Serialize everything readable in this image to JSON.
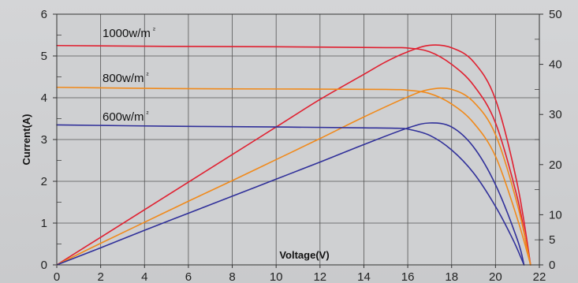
{
  "chart_data": {
    "type": "line",
    "xlabel": "Voltage(V)",
    "ylabel": "Current(A)",
    "xlim": [
      0,
      22
    ],
    "ylim": [
      0,
      6
    ],
    "y2lim": [
      0,
      50
    ],
    "xticks": [
      0,
      2,
      4,
      6,
      8,
      10,
      12,
      14,
      16,
      18,
      20,
      22
    ],
    "yticks": [
      0,
      1,
      2,
      3,
      4,
      5,
      6
    ],
    "y2ticks": [
      0,
      5,
      10,
      20,
      30,
      40,
      50
    ],
    "grid": true,
    "series": [
      {
        "name": "1000w/m²",
        "axis": "left",
        "color": "#e02030",
        "label_parts": [
          "1000w/m",
          "²"
        ],
        "points": [
          [
            0,
            5.25
          ],
          [
            5,
            5.23
          ],
          [
            10,
            5.22
          ],
          [
            15,
            5.2
          ],
          [
            16,
            5.19
          ],
          [
            17,
            5.1
          ],
          [
            18,
            4.8
          ],
          [
            19,
            4.3
          ],
          [
            20,
            3.4
          ],
          [
            21,
            1.6
          ],
          [
            21.4,
            0.5
          ],
          [
            21.6,
            0
          ]
        ]
      },
      {
        "name": "1000w/m² power",
        "axis": "right",
        "color": "#e02030",
        "points": [
          [
            0,
            0
          ],
          [
            2,
            5.5
          ],
          [
            4,
            11
          ],
          [
            6,
            16.5
          ],
          [
            8,
            22
          ],
          [
            10,
            27.5
          ],
          [
            12,
            33
          ],
          [
            14,
            38
          ],
          [
            15,
            40.5
          ],
          [
            16,
            42.5
          ],
          [
            17,
            43.8
          ],
          [
            18,
            43.3
          ],
          [
            19,
            40.5
          ],
          [
            20,
            33
          ],
          [
            21,
            16
          ],
          [
            21.6,
            0
          ]
        ]
      },
      {
        "name": "800w/m²",
        "axis": "left",
        "color": "#f08a1c",
        "label_parts": [
          "800w/m",
          "²"
        ],
        "points": [
          [
            0,
            4.25
          ],
          [
            5,
            4.22
          ],
          [
            10,
            4.21
          ],
          [
            15,
            4.2
          ],
          [
            16,
            4.18
          ],
          [
            17,
            4.1
          ],
          [
            18,
            3.85
          ],
          [
            19,
            3.4
          ],
          [
            20,
            2.6
          ],
          [
            21,
            1.1
          ],
          [
            21.6,
            0
          ]
        ]
      },
      {
        "name": "800w/m² power",
        "axis": "right",
        "color": "#f08a1c",
        "points": [
          [
            0,
            0
          ],
          [
            2,
            4.3
          ],
          [
            4,
            8.5
          ],
          [
            6,
            12.7
          ],
          [
            8,
            16.8
          ],
          [
            10,
            21
          ],
          [
            12,
            25.2
          ],
          [
            14,
            29.5
          ],
          [
            16,
            33.5
          ],
          [
            17,
            35
          ],
          [
            18,
            35
          ],
          [
            19,
            32.5
          ],
          [
            20,
            26
          ],
          [
            21,
            12
          ],
          [
            21.6,
            0
          ]
        ]
      },
      {
        "name": "600w/m²",
        "axis": "left",
        "color": "#30309a",
        "label_parts": [
          "600w/m",
          "²"
        ],
        "points": [
          [
            0,
            3.35
          ],
          [
            5,
            3.32
          ],
          [
            10,
            3.3
          ],
          [
            14,
            3.28
          ],
          [
            15.5,
            3.27
          ],
          [
            16,
            3.25
          ],
          [
            17,
            3.1
          ],
          [
            18,
            2.75
          ],
          [
            19,
            2.2
          ],
          [
            20,
            1.4
          ],
          [
            20.8,
            0.6
          ],
          [
            21.3,
            0
          ]
        ]
      },
      {
        "name": "600w/m² power",
        "axis": "right",
        "color": "#30309a",
        "points": [
          [
            0,
            0
          ],
          [
            2,
            3.4
          ],
          [
            4,
            6.9
          ],
          [
            6,
            10.3
          ],
          [
            8,
            13.7
          ],
          [
            10,
            17.1
          ],
          [
            12,
            20.5
          ],
          [
            14,
            24
          ],
          [
            16,
            27.3
          ],
          [
            17,
            28.3
          ],
          [
            18,
            27.5
          ],
          [
            19,
            23.5
          ],
          [
            20,
            16
          ],
          [
            21,
            5
          ],
          [
            21.3,
            0
          ]
        ]
      }
    ]
  }
}
